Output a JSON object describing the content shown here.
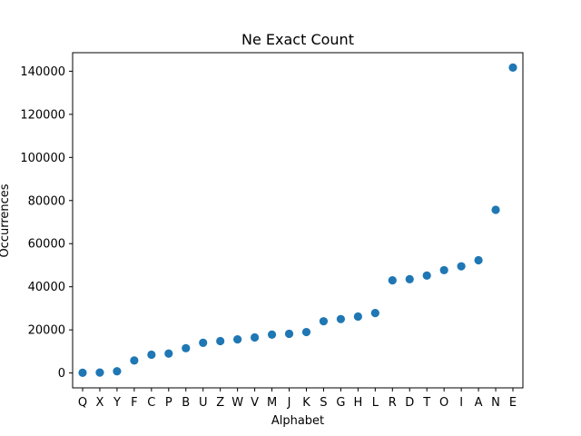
{
  "chart_data": {
    "type": "scatter",
    "title": "Ne Exact Count",
    "xlabel": "Alphabet",
    "ylabel": "Occurrences",
    "categories": [
      "Q",
      "X",
      "Y",
      "F",
      "C",
      "P",
      "B",
      "U",
      "Z",
      "W",
      "V",
      "M",
      "J",
      "K",
      "S",
      "G",
      "H",
      "L",
      "R",
      "D",
      "T",
      "O",
      "I",
      "A",
      "N",
      "E"
    ],
    "values": [
      100,
      200,
      800,
      5800,
      8500,
      9000,
      11500,
      14000,
      14800,
      15600,
      16500,
      17800,
      18200,
      19000,
      24000,
      25000,
      26200,
      27800,
      43000,
      43500,
      45200,
      47700,
      49500,
      52300,
      75700,
      141700
    ],
    "ylim": [
      -6900,
      148600
    ],
    "yticks": [
      0,
      20000,
      40000,
      60000,
      80000,
      100000,
      120000,
      140000
    ],
    "ytick_labels": [
      "0",
      "20000",
      "40000",
      "60000",
      "80000",
      "100000",
      "120000",
      "140000"
    ],
    "grid": false,
    "marker_color": "#1f77b4"
  }
}
